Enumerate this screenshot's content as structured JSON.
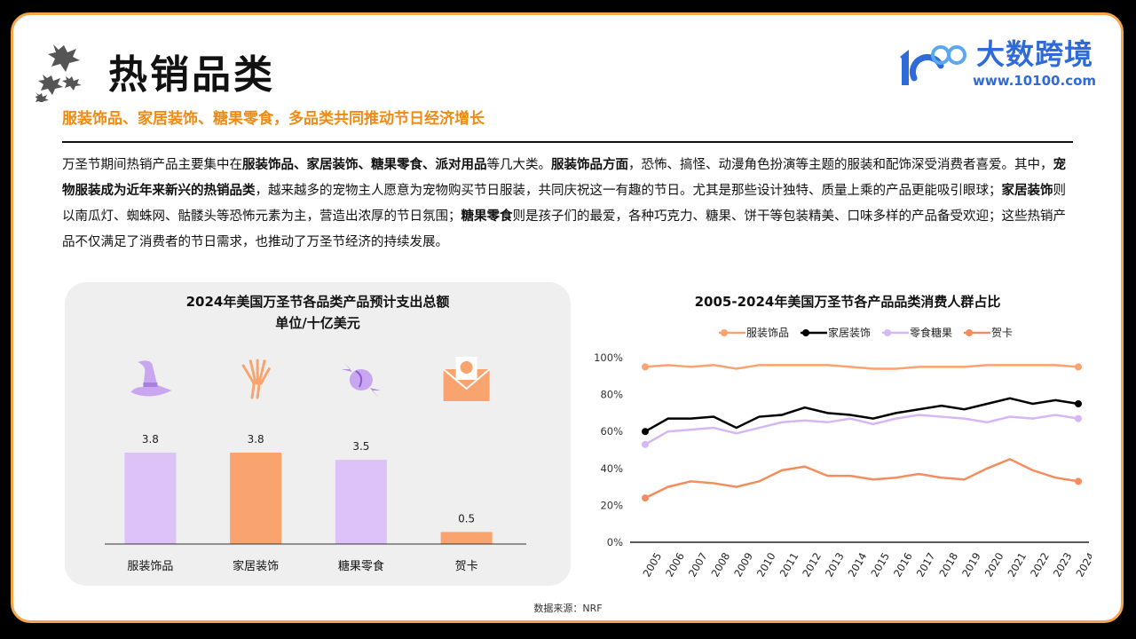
{
  "header": {
    "title": "热销品类",
    "subtitle": "服装饰品、家居装饰、糖果零食，多品类共同推动节日经济增长"
  },
  "logo": {
    "name": "大数跨境",
    "url": "www.10100.com"
  },
  "intro": {
    "segments": [
      {
        "text": "万圣节期间热销产品主要集中在",
        "bold": false
      },
      {
        "text": "服装饰品、家居装饰、糖果零食、派对用品",
        "bold": true
      },
      {
        "text": "等几大类。",
        "bold": false
      },
      {
        "text": "服装饰品方面",
        "bold": true
      },
      {
        "text": "，恐怖、搞怪、动漫角色扮演等主题的服装和配饰深受消费者喜爱。其中，",
        "bold": false
      },
      {
        "text": "宠物服装成为近年来新兴的热销品类",
        "bold": true
      },
      {
        "text": "，越来越多的宠物主人愿意为宠物购买节日服装，共同庆祝这一有趣的节日。尤其是那些设计独特、质量上乘的产品更能吸引眼球；",
        "bold": false
      },
      {
        "text": "家居装饰",
        "bold": true
      },
      {
        "text": "则以南瓜灯、蜘蛛网、骷髅头等恐怖元素为主，营造出浓厚的节日氛围；",
        "bold": false
      },
      {
        "text": "糖果零食",
        "bold": true
      },
      {
        "text": "则是孩子们的最爱，各种巧克力、糖果、饼干等包装精美、口味多样的产品备受欢迎；这些热销产品不仅满足了消费者的节日需求，也推动了万圣节经济的持续发展。",
        "bold": false
      }
    ]
  },
  "source": "数据来源：NRF",
  "colors": {
    "accent_orange": "#f08a12",
    "border_orange": "#f5a64b",
    "bar_purple": "#dcc2f7",
    "bar_orange": "#f9a36f",
    "logo_blue": "#2f6bd8"
  },
  "chart_data": [
    {
      "type": "bar",
      "title": "2024年美国万圣节各品类产品预计支出总额",
      "subtitle": "单位/十亿美元",
      "categories": [
        "服装饰品",
        "家居装饰",
        "糖果零食",
        "贺卡"
      ],
      "values": [
        3.8,
        3.8,
        3.5,
        0.5
      ],
      "data_labels": [
        "3.8",
        "3.8",
        "3.5",
        "0.5"
      ],
      "icons": [
        "witch-hat-icon",
        "skeleton-hand-icon",
        "candy-icon",
        "envelope-card-icon"
      ],
      "bar_colors": [
        "#dcc2f7",
        "#f9a36f",
        "#dcc2f7",
        "#f9a36f"
      ],
      "ylim": [
        0,
        4.5
      ],
      "grid": false
    },
    {
      "type": "line",
      "title": "2005-2024年美国万圣节各产品品类消费人群占比",
      "x": [
        "2005",
        "2006",
        "2007",
        "2008",
        "2009",
        "2010",
        "2011",
        "2012",
        "2013",
        "2014",
        "2015",
        "2016",
        "2017",
        "2018",
        "2019",
        "2020",
        "2021",
        "2022",
        "2023",
        "2024"
      ],
      "yticks": [
        "0%",
        "20%",
        "40%",
        "60%",
        "80%",
        "100%"
      ],
      "ylim": [
        0,
        100
      ],
      "legend_position": "top",
      "grid": false,
      "series": [
        {
          "name": "服装饰品",
          "color": "#f9a36f",
          "values": [
            95,
            96,
            95,
            96,
            94,
            96,
            96,
            96,
            96,
            95,
            94,
            94,
            95,
            95,
            95,
            96,
            96,
            96,
            96,
            95
          ]
        },
        {
          "name": "家居装饰",
          "color": "#000000",
          "values": [
            60,
            67,
            67,
            68,
            62,
            68,
            69,
            73,
            70,
            69,
            67,
            70,
            72,
            74,
            72,
            75,
            78,
            75,
            77,
            75
          ]
        },
        {
          "name": "零食糖果",
          "color": "#d7b6f4",
          "values": [
            53,
            60,
            61,
            62,
            59,
            62,
            65,
            66,
            65,
            67,
            64,
            67,
            69,
            68,
            67,
            65,
            68,
            67,
            69,
            67
          ]
        },
        {
          "name": "贺卡",
          "color": "#f38d5f",
          "values": [
            24,
            30,
            33,
            32,
            30,
            33,
            39,
            41,
            36,
            36,
            34,
            35,
            37,
            35,
            34,
            40,
            45,
            39,
            35,
            33
          ]
        }
      ]
    }
  ]
}
